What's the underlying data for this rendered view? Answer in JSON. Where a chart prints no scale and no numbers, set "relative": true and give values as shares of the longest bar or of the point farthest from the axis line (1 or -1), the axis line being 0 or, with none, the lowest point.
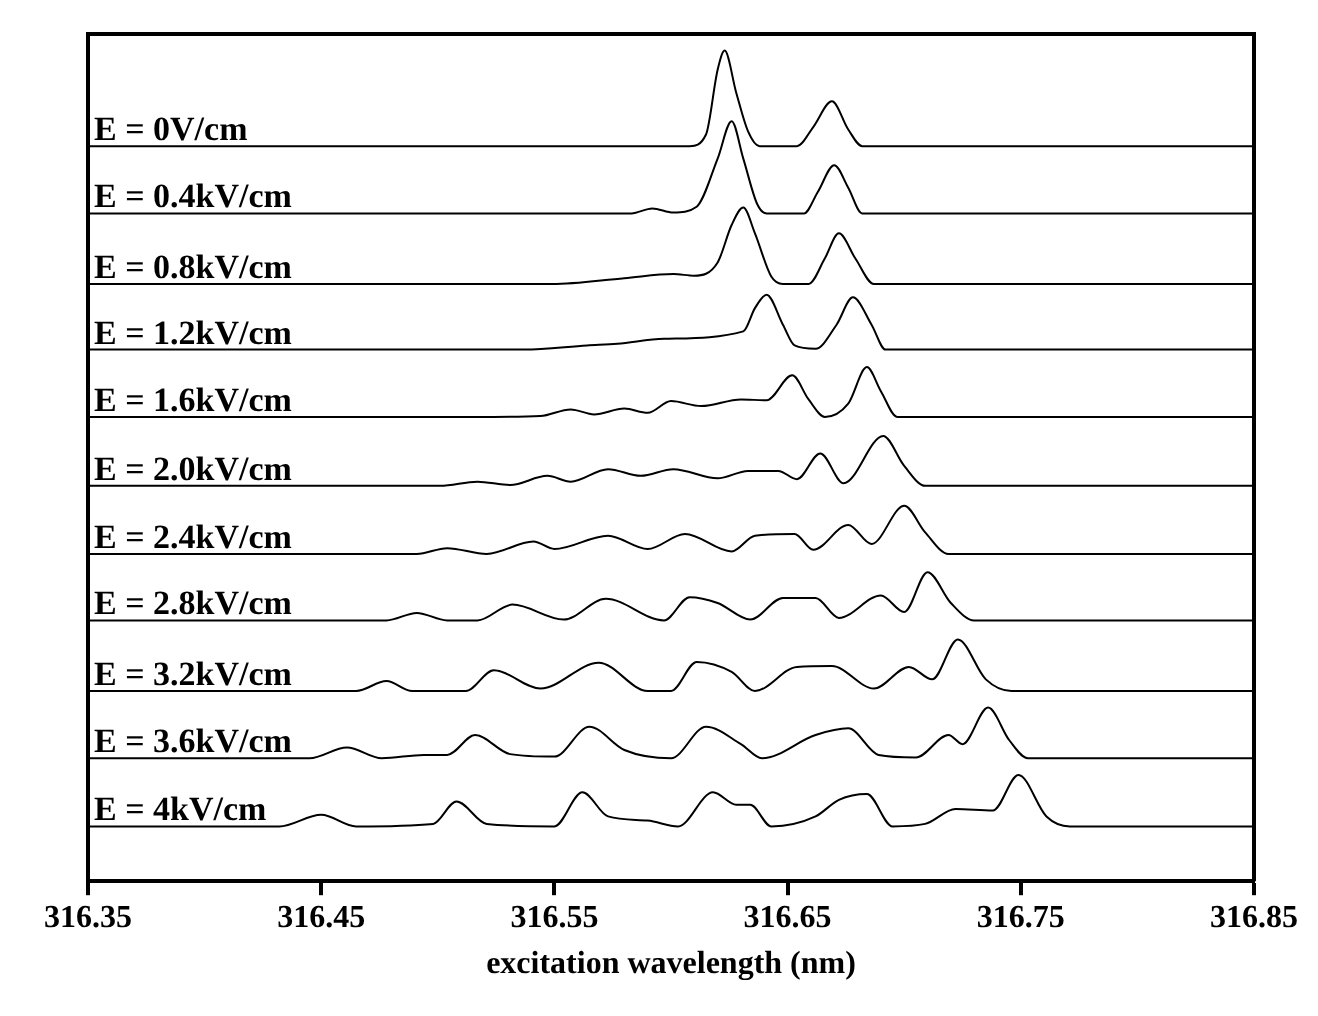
{
  "chart_data": {
    "type": "line",
    "relative": true,
    "xlabel": "excitation wavelength (nm)",
    "xlim": [
      316.35,
      316.85
    ],
    "xticks": [
      316.35,
      316.45,
      316.55,
      316.65,
      316.75,
      316.85
    ],
    "grid": false,
    "legend": false,
    "marker": "none",
    "line_style": "solid",
    "series": [
      {
        "name": "E = 0V/cm",
        "color": "#000000",
        "x": [
          316.35,
          316.608,
          316.615,
          316.62,
          316.623,
          316.628,
          316.633,
          316.638,
          316.654,
          316.661,
          316.669,
          316.676,
          316.682,
          316.85
        ],
        "values": [
          0.885,
          0.885,
          0.899,
          0.977,
          1.0,
          0.949,
          0.903,
          0.885,
          0.885,
          0.908,
          0.939,
          0.905,
          0.885,
          0.885
        ]
      },
      {
        "name": "E = 0.4kV/cm",
        "color": "#000000",
        "x": [
          316.35,
          316.583,
          316.592,
          316.601,
          316.611,
          316.62,
          316.626,
          316.631,
          316.637,
          316.641,
          316.657,
          316.663,
          316.67,
          316.676,
          316.682,
          316.85
        ],
        "values": [
          0.804,
          0.804,
          0.81,
          0.805,
          0.812,
          0.87,
          0.915,
          0.87,
          0.815,
          0.804,
          0.804,
          0.83,
          0.862,
          0.835,
          0.804,
          0.804
        ]
      },
      {
        "name": "E = 0.8kV/cm",
        "color": "#000000",
        "x": [
          316.35,
          316.549,
          316.58,
          316.601,
          316.61,
          316.62,
          316.626,
          316.631,
          316.636,
          316.643,
          316.648,
          316.659,
          316.666,
          316.672,
          316.679,
          316.687,
          316.85
        ],
        "values": [
          0.719,
          0.719,
          0.726,
          0.731,
          0.729,
          0.745,
          0.79,
          0.811,
          0.78,
          0.728,
          0.719,
          0.719,
          0.75,
          0.78,
          0.75,
          0.719,
          0.719
        ]
      },
      {
        "name": "E = 1.2kV/cm",
        "color": "#000000",
        "x": [
          316.35,
          316.537,
          316.564,
          316.577,
          316.597,
          316.631,
          316.636,
          316.641,
          316.648,
          316.653,
          316.662,
          316.671,
          316.678,
          316.686,
          316.692,
          316.85
        ],
        "values": [
          0.64,
          0.64,
          0.645,
          0.647,
          0.653,
          0.662,
          0.69,
          0.706,
          0.67,
          0.645,
          0.641,
          0.67,
          0.703,
          0.67,
          0.64,
          0.64
        ]
      },
      {
        "name": "E = 1.6kV/cm",
        "color": "#000000",
        "x": [
          316.35,
          316.524,
          316.544,
          316.557,
          316.567,
          316.58,
          316.59,
          316.6,
          316.613,
          316.63,
          316.641,
          316.652,
          316.659,
          316.666,
          316.676,
          316.684,
          316.69,
          316.697,
          316.85
        ],
        "values": [
          0.559,
          0.559,
          0.56,
          0.568,
          0.562,
          0.569,
          0.564,
          0.578,
          0.572,
          0.58,
          0.579,
          0.609,
          0.58,
          0.559,
          0.575,
          0.619,
          0.59,
          0.559,
          0.559
        ]
      },
      {
        "name": "E = 2.0kV/cm",
        "color": "#000000",
        "x": [
          316.35,
          316.501,
          316.517,
          316.531,
          316.547,
          316.557,
          316.573,
          316.587,
          316.601,
          316.62,
          316.633,
          316.646,
          316.654,
          316.664,
          316.674,
          316.691,
          316.7,
          316.709,
          316.85
        ],
        "values": [
          0.476,
          0.476,
          0.481,
          0.477,
          0.488,
          0.481,
          0.496,
          0.488,
          0.496,
          0.485,
          0.494,
          0.494,
          0.484,
          0.515,
          0.479,
          0.536,
          0.5,
          0.476,
          0.476
        ]
      },
      {
        "name": "E = 2.4kV/cm",
        "color": "#000000",
        "x": [
          316.35,
          316.491,
          316.504,
          316.521,
          316.541,
          316.55,
          316.573,
          316.59,
          316.606,
          316.626,
          316.636,
          316.653,
          316.661,
          316.676,
          316.686,
          316.7,
          316.709,
          316.719,
          316.85
        ],
        "values": [
          0.394,
          0.394,
          0.401,
          0.394,
          0.409,
          0.4,
          0.416,
          0.4,
          0.418,
          0.397,
          0.416,
          0.418,
          0.399,
          0.429,
          0.406,
          0.452,
          0.42,
          0.394,
          0.394
        ]
      },
      {
        "name": "E = 2.8kV/cm",
        "color": "#000000",
        "x": [
          316.35,
          316.478,
          316.491,
          316.504,
          316.517,
          316.532,
          316.554,
          316.572,
          316.597,
          316.608,
          316.62,
          316.634,
          316.648,
          316.662,
          316.672,
          316.69,
          316.7,
          316.71,
          316.72,
          316.73,
          316.85
        ],
        "values": [
          0.314,
          0.314,
          0.323,
          0.314,
          0.314,
          0.333,
          0.315,
          0.34,
          0.314,
          0.342,
          0.335,
          0.315,
          0.341,
          0.341,
          0.317,
          0.344,
          0.324,
          0.372,
          0.335,
          0.314,
          0.314
        ]
      },
      {
        "name": "E = 3.2kV/cm",
        "color": "#000000",
        "x": [
          316.35,
          316.465,
          316.478,
          316.489,
          316.512,
          316.524,
          316.544,
          316.569,
          316.59,
          316.6,
          316.611,
          316.626,
          316.636,
          316.654,
          316.669,
          316.687,
          316.702,
          316.712,
          316.723,
          316.735,
          316.746,
          316.85
        ],
        "values": [
          0.229,
          0.229,
          0.241,
          0.229,
          0.229,
          0.254,
          0.232,
          0.263,
          0.229,
          0.229,
          0.264,
          0.252,
          0.229,
          0.258,
          0.259,
          0.232,
          0.258,
          0.243,
          0.291,
          0.243,
          0.229,
          0.229
        ]
      },
      {
        "name": "E = 3.6kV/cm",
        "color": "#000000",
        "x": [
          316.35,
          316.445,
          316.461,
          316.476,
          316.494,
          316.504,
          316.516,
          316.531,
          316.55,
          316.565,
          316.58,
          316.6,
          316.615,
          316.63,
          316.639,
          316.662,
          316.676,
          316.689,
          316.705,
          316.719,
          316.725,
          316.736,
          316.745,
          316.753,
          316.85
        ],
        "values": [
          0.148,
          0.148,
          0.161,
          0.148,
          0.152,
          0.152,
          0.176,
          0.153,
          0.15,
          0.186,
          0.158,
          0.148,
          0.186,
          0.165,
          0.148,
          0.176,
          0.184,
          0.152,
          0.149,
          0.176,
          0.165,
          0.209,
          0.17,
          0.148,
          0.148
        ]
      },
      {
        "name": "E = 4kV/cm",
        "color": "#000000",
        "x": [
          316.35,
          316.432,
          316.45,
          316.465,
          316.498,
          316.508,
          316.521,
          316.55,
          316.562,
          316.573,
          316.59,
          316.603,
          316.618,
          316.628,
          316.634,
          316.643,
          316.662,
          316.672,
          316.684,
          316.695,
          316.709,
          316.722,
          316.738,
          316.749,
          316.761,
          316.771,
          316.85
        ],
        "values": [
          0.066,
          0.066,
          0.08,
          0.066,
          0.069,
          0.096,
          0.069,
          0.066,
          0.107,
          0.078,
          0.073,
          0.066,
          0.107,
          0.092,
          0.092,
          0.066,
          0.078,
          0.098,
          0.105,
          0.066,
          0.069,
          0.087,
          0.085,
          0.128,
          0.078,
          0.066,
          0.066
        ]
      }
    ]
  }
}
